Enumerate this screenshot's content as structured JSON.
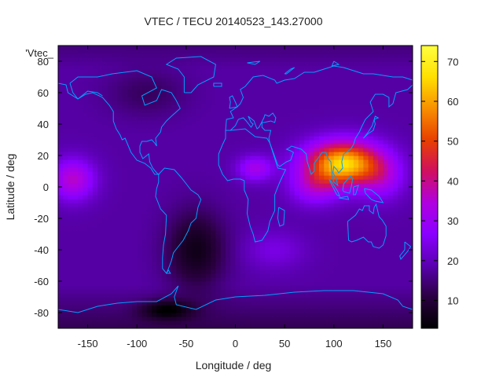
{
  "chart_data": {
    "type": "heatmap",
    "title": "VTEC / TECU 20140523_143.27000",
    "xlabel": "Longitude / deg",
    "ylabel": "Latitude / deg",
    "legend_label": "'Vtec_",
    "xlim": [
      -180,
      180
    ],
    "ylim": [
      -90,
      90
    ],
    "x_ticks": [
      -150,
      -100,
      -50,
      0,
      50,
      100,
      150
    ],
    "y_ticks": [
      -80,
      -60,
      -40,
      -20,
      0,
      20,
      40,
      60,
      80
    ],
    "colorbar": {
      "range": [
        3,
        74
      ],
      "ticks": [
        10,
        20,
        30,
        40,
        50,
        60,
        70
      ],
      "palette": [
        "#000000",
        "#2a0040",
        "#5a00b0",
        "#8a00ff",
        "#b000e0",
        "#d01060",
        "#e84000",
        "#f89000",
        "#ffe000",
        "#ffff40"
      ]
    },
    "grid": false,
    "grid_spacing_deg": {
      "lon": 5,
      "lat": 2.5
    },
    "vtec_field": {
      "background": 18,
      "anomalies": [
        {
          "lon": 110,
          "lat": 15,
          "amp": 48,
          "sigma_lon": 38,
          "sigma_lat": 14
        },
        {
          "lon": 80,
          "lat": 0,
          "amp": 12,
          "sigma_lon": 25,
          "sigma_lat": 12
        },
        {
          "lon": 150,
          "lat": 5,
          "amp": 10,
          "sigma_lon": 22,
          "sigma_lat": 14
        },
        {
          "lon": 20,
          "lat": 12,
          "amp": 14,
          "sigma_lon": 18,
          "sigma_lat": 8
        },
        {
          "lon": -165,
          "lat": 5,
          "amp": 18,
          "sigma_lon": 22,
          "sigma_lat": 13
        },
        {
          "lon": 40,
          "lat": -40,
          "amp": 6,
          "sigma_lon": 30,
          "sigma_lat": 12
        },
        {
          "lon": -40,
          "lat": -40,
          "amp": -12,
          "sigma_lon": 30,
          "sigma_lat": 25
        },
        {
          "lon": -70,
          "lat": -78,
          "amp": -12,
          "sigma_lon": 25,
          "sigma_lat": 6
        },
        {
          "lon": -90,
          "lat": 60,
          "amp": -5,
          "sigma_lon": 40,
          "sigma_lat": 15
        }
      ],
      "polar_decrease": {
        "south_start_lat": -62,
        "south_drop": 6,
        "north_start_lat": 75,
        "north_drop": 3
      }
    },
    "coastlines_color": "#00a0ff"
  }
}
